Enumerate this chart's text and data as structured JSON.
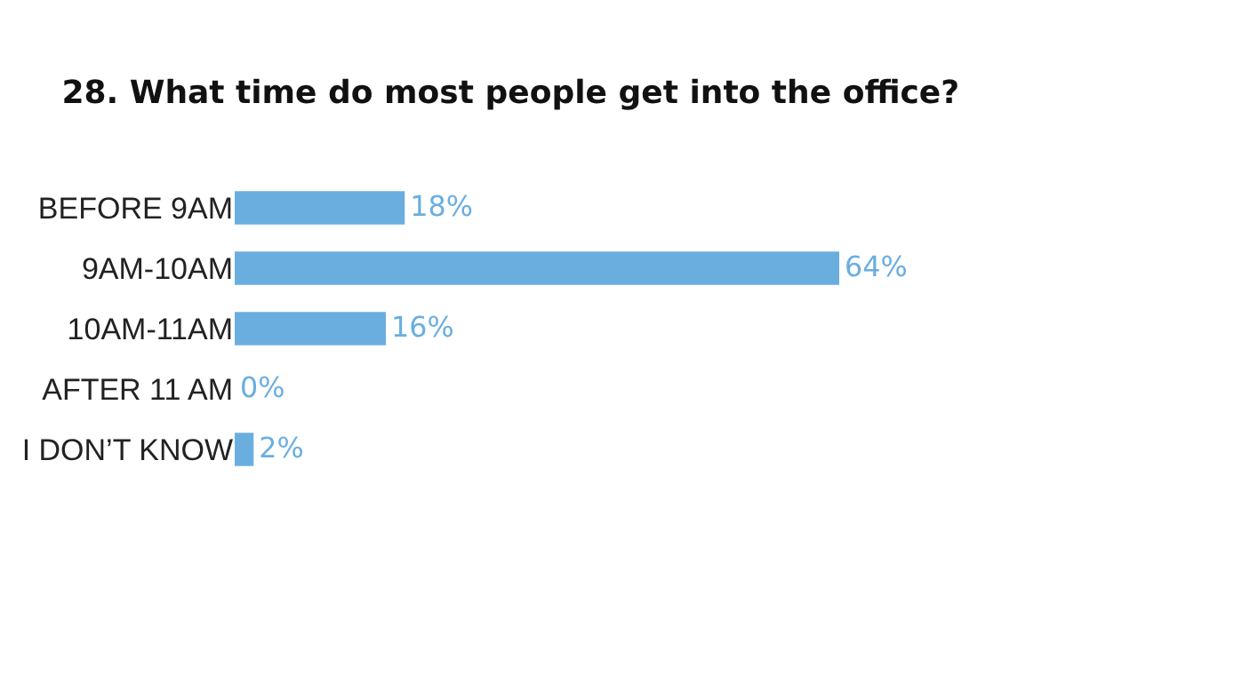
{
  "chart_data": {
    "type": "bar",
    "orientation": "horizontal",
    "title": "28. What time do most people get into the office?",
    "categories": [
      "BEFORE 9AM",
      "9AM-10AM",
      "10AM-11AM",
      "AFTER 11 AM",
      "I DON’T KNOW"
    ],
    "values": [
      18,
      64,
      16,
      0,
      2
    ],
    "value_labels": [
      "18%",
      "64%",
      "16%",
      "0%",
      "2%"
    ],
    "color": "#6aaee0",
    "grid": false,
    "legend": false
  }
}
